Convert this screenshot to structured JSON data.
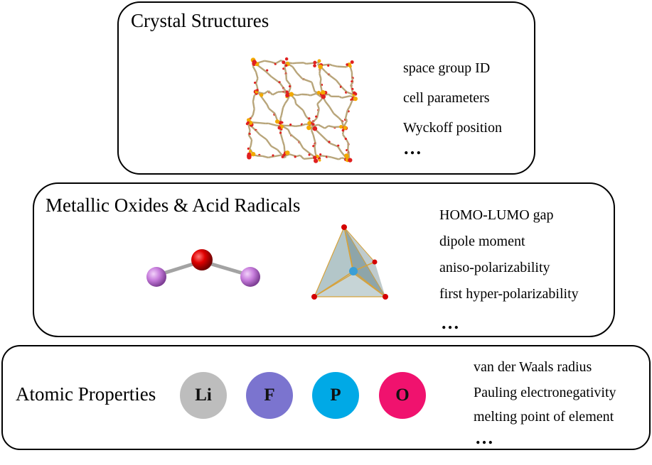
{
  "panels": {
    "crystal": {
      "title": "Crystal Structures",
      "properties": [
        "space group ID",
        "cell parameters",
        "Wyckoff position"
      ],
      "ellipsis": "…"
    },
    "oxide": {
      "title": "Metallic Oxides & Acid Radicals",
      "properties": [
        "HOMO-LUMO gap",
        "dipole moment",
        "aniso-polarizability",
        "first hyper-polarizability"
      ],
      "ellipsis": "…"
    },
    "atomic": {
      "title": "Atomic Properties",
      "atoms": [
        {
          "symbol": "Li",
          "color": "#bdbdbd"
        },
        {
          "symbol": "F",
          "color": "#7b74cf"
        },
        {
          "symbol": "P",
          "color": "#00a9e6"
        },
        {
          "symbol": "O",
          "color": "#f0126e"
        }
      ],
      "properties": [
        "van der Waals radius",
        "Pauling electronegativity",
        "melting point of element"
      ],
      "ellipsis": "…"
    }
  },
  "colors": {
    "framework_bond": "#b8a57a",
    "framework_oxygen": "#e02020",
    "framework_metal": "#f2a900",
    "molecule_center": "#d40000",
    "molecule_side": "#c77ddc",
    "tetra_face": "#9fb5b8",
    "tetra_center": "#3a9fd6"
  }
}
